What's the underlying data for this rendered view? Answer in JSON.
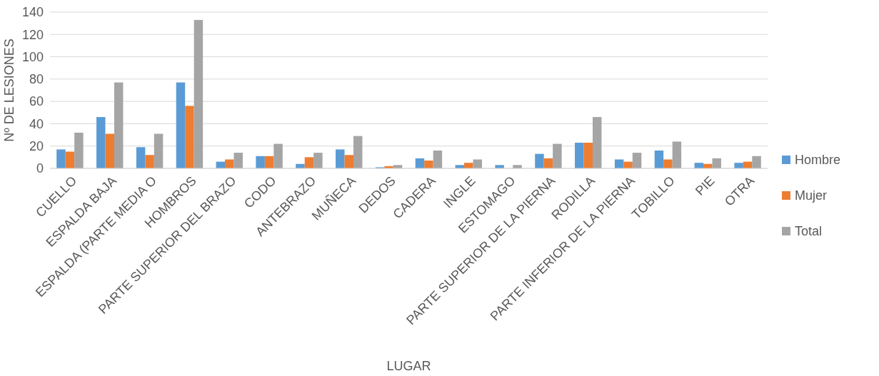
{
  "chart_data": {
    "type": "bar",
    "xlabel": "LUGAR",
    "ylabel": "Nº DE LESIONES",
    "categories": [
      "CUELLO",
      "ESPALDA BAJA",
      "ESPALDA (PARTE MEDIA O",
      "HOMBROS",
      "PARTE SUPERIOR DEL BRAZO",
      "CODO",
      "ANTEBRAZO",
      "MUÑECA",
      "DEDOS",
      "CADERA",
      "INGLE",
      "ESTOMAGO",
      "PARTE SUPERIOR DE LA PIERNA",
      "RODILLA",
      "PARTE INFERIOR DE LA PIERNA",
      "TOBILLO",
      "PIE",
      "OTRA"
    ],
    "series": [
      {
        "name": "Hombre",
        "color": "#5b9bd5",
        "values": [
          17,
          46,
          19,
          77,
          6,
          11,
          4,
          17,
          1,
          9,
          3,
          3,
          13,
          23,
          8,
          16,
          5,
          5
        ]
      },
      {
        "name": "Mujer",
        "color": "#ed7d31",
        "values": [
          15,
          31,
          12,
          56,
          8,
          11,
          10,
          12,
          2,
          7,
          5,
          0,
          9,
          23,
          6,
          8,
          4,
          6
        ]
      },
      {
        "name": "Total",
        "color": "#a5a5a5",
        "values": [
          32,
          77,
          31,
          133,
          14,
          22,
          14,
          29,
          3,
          16,
          8,
          3,
          22,
          46,
          14,
          24,
          9,
          11
        ]
      }
    ],
    "ylim": [
      0,
      140
    ],
    "yticks": [
      0,
      20,
      40,
      60,
      80,
      100,
      120,
      140
    ],
    "grid": "y",
    "legend": "right"
  }
}
